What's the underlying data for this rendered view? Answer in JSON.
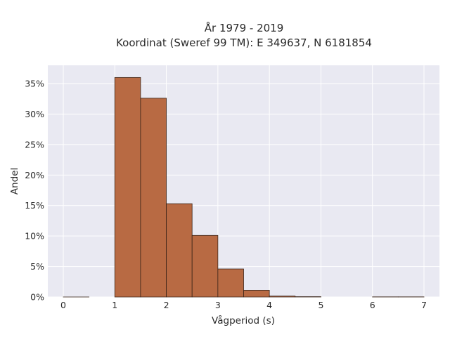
{
  "chart_data": {
    "type": "bar",
    "title": "År 1979 - 2019",
    "subtitle": "Koordinat (Sweref 99 TM): E 349637, N 6181854",
    "xlabel": "Vågperiod (s)",
    "ylabel": "Andel",
    "bin_width": 0.5,
    "bins": [
      {
        "start": 0.0,
        "value": 0.001
      },
      {
        "start": 0.5,
        "value": 0.0
      },
      {
        "start": 1.0,
        "value": 36.0
      },
      {
        "start": 1.5,
        "value": 32.6
      },
      {
        "start": 2.0,
        "value": 15.3
      },
      {
        "start": 2.5,
        "value": 10.1
      },
      {
        "start": 3.0,
        "value": 4.6
      },
      {
        "start": 3.5,
        "value": 1.1
      },
      {
        "start": 4.0,
        "value": 0.15
      },
      {
        "start": 4.5,
        "value": 0.05
      },
      {
        "start": 5.0,
        "value": 0.0
      },
      {
        "start": 5.5,
        "value": 0.0
      },
      {
        "start": 6.0,
        "value": 0.02
      },
      {
        "start": 6.5,
        "value": 0.02
      }
    ],
    "xlim": [
      -0.3,
      7.3
    ],
    "ylim": [
      0,
      38
    ],
    "x_ticks": [
      0,
      1,
      2,
      3,
      4,
      5,
      6,
      7
    ],
    "y_ticks": [
      0,
      5,
      10,
      15,
      20,
      25,
      30,
      35
    ],
    "y_tick_labels": [
      "0%",
      "5%",
      "10%",
      "15%",
      "20%",
      "25%",
      "30%",
      "35%"
    ],
    "grid": true,
    "colors": {
      "bar": "#b86a43",
      "bar_edge": "#3a2418",
      "plot_bg": "#e9e9f2",
      "grid": "#ffffff"
    }
  }
}
